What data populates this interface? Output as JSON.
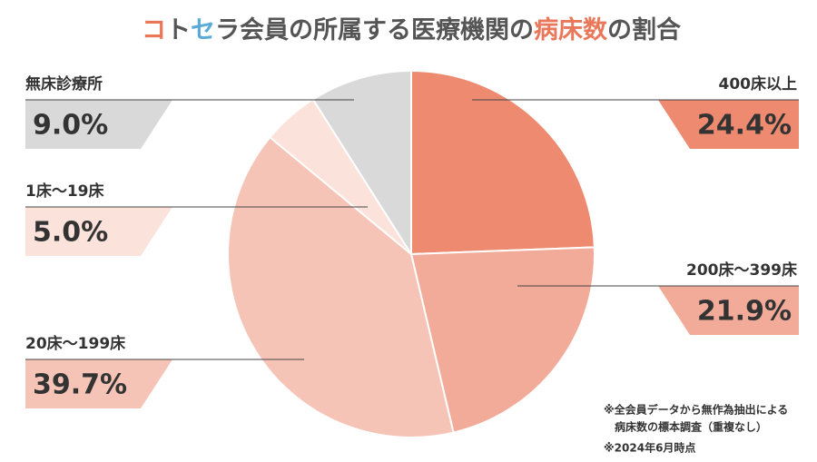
{
  "chart_data": {
    "type": "pie",
    "title": [
      "コ",
      "ト",
      "セ",
      "ラ会員の所属する医療機関の",
      "病床数",
      "の割合"
    ],
    "title_colors": [
      "#e9775a",
      "#555555",
      "#5aaad8",
      "#555555",
      "#e9775a",
      "#555555"
    ],
    "categories": [
      "400床以上",
      "200床～399床",
      "20床～199床",
      "1床～19床",
      "無床診療所"
    ],
    "values": [
      24.4,
      21.9,
      39.7,
      5.0,
      9.0
    ],
    "value_labels": [
      "24.4%",
      "21.9%",
      "39.7%",
      "5.0%",
      "9.0%"
    ],
    "colors": [
      "#ed8a70",
      "#f2ab99",
      "#f6c4b6",
      "#fbe3dc",
      "#d9d9d9"
    ],
    "notes": [
      "※全会員データから無作為抽出による",
      "病床数の標本調査（重複なし）",
      "※2024年6月時点"
    ]
  }
}
